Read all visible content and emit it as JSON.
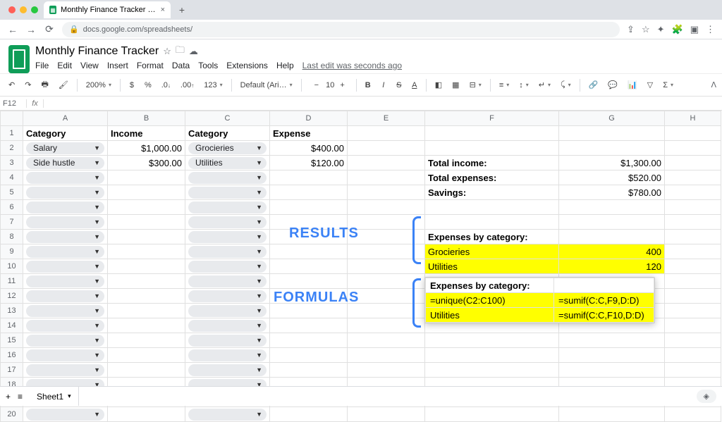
{
  "browser": {
    "tab_title": "Monthly Finance Tracker - Goo…",
    "url": "docs.google.com/spreadsheets/"
  },
  "doc": {
    "title": "Monthly Finance Tracker",
    "menus": [
      "File",
      "Edit",
      "View",
      "Insert",
      "Format",
      "Data",
      "Tools",
      "Extensions",
      "Help"
    ],
    "last_edit": "Last edit was seconds ago"
  },
  "toolbar": {
    "zoom": "200%",
    "currency": "$",
    "percent": "%",
    "dec_dec": ".0",
    "dec_inc": ".00",
    "decfmt": "123",
    "font": "Default (Ari…",
    "size": "10"
  },
  "namebox": "F12",
  "fx": "fx",
  "columns": [
    "A",
    "B",
    "C",
    "D",
    "E",
    "F",
    "G",
    "H"
  ],
  "rowcount": 20,
  "headers": {
    "A1": "Category",
    "B1": "Income",
    "C1": "Category",
    "D1": "Expense"
  },
  "data_rows": [
    {
      "a": "Salary",
      "b": "$1,000.00",
      "c": "Grocieries",
      "d": "$400.00"
    },
    {
      "a": "Side hustle",
      "b": "$300.00",
      "c": "Utilities",
      "d": "$120.00"
    }
  ],
  "summary": {
    "F3": "Total income:",
    "G3": "$1,300.00",
    "F4": "Total expenses:",
    "G4": "$520.00",
    "F5": "Savings:",
    "G5": "$780.00"
  },
  "results": {
    "header": "Expenses by category:",
    "rows": [
      {
        "cat": "Grocieries",
        "val": "400"
      },
      {
        "cat": "Utilities",
        "val": "120"
      }
    ]
  },
  "formulas": {
    "header": "Expenses by category:",
    "rows": [
      {
        "f": "=unique(С2:С100)",
        "g": "=sumif(C:C,F9,D:D)"
      },
      {
        "f": "Utilities",
        "g": "=sumif(C:C,F10,D:D)"
      }
    ]
  },
  "annotations": {
    "results": "RESULTS",
    "formulas": "FORMULAS"
  },
  "sheet_tab": "Sheet1",
  "selected_cell": "F12",
  "colors": {
    "highlight": "#ffff00",
    "annotation": "#3b82f6",
    "sheets_green": "#0f9d58"
  }
}
